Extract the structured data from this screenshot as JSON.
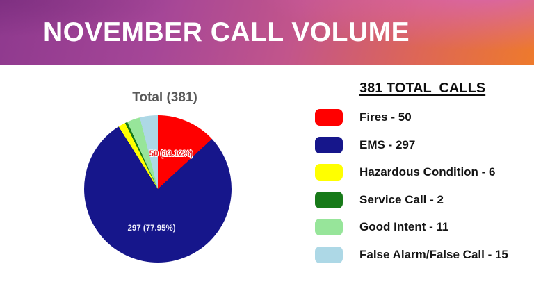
{
  "header": {
    "title": "NOVEMBER CALL VOLUME"
  },
  "chart_data": {
    "type": "pie",
    "title": "Total (381)",
    "total": 381,
    "start_angle_deg": 0,
    "direction": "clockwise",
    "legend_position": "right",
    "slices": [
      {
        "label": "Fires",
        "value": 50,
        "color": "#ff0000",
        "display_label": "50 (13.12%)"
      },
      {
        "label": "EMS",
        "value": 297,
        "color": "#16168b",
        "display_label": "297 (77.95%)"
      },
      {
        "label": "Hazardous Condition",
        "value": 6,
        "color": "#ffff00"
      },
      {
        "label": "Service Call",
        "value": 2,
        "color": "#177a19"
      },
      {
        "label": "Good Intent",
        "value": 11,
        "color": "#97e59a"
      },
      {
        "label": "False Alarm/False Call",
        "value": 15,
        "color": "#add8e6"
      }
    ],
    "callouts": [
      {
        "text": "50 (13.12%)",
        "color": "#e82828"
      },
      {
        "text": "297 (77.95%)",
        "color": "#eeeefc"
      }
    ]
  },
  "legend": {
    "heading": "381 TOTAL  CALLS",
    "items": [
      {
        "label": "Fires - 50",
        "color": "#ff0000"
      },
      {
        "label": "EMS - 297",
        "color": "#16168b"
      },
      {
        "label": "Hazardous Condition - 6",
        "color": "#ffff00"
      },
      {
        "label": "Service Call - 2",
        "color": "#177a19"
      },
      {
        "label": "Good Intent - 11",
        "color": "#97e59a"
      },
      {
        "label": "False Alarm/False Call - 15",
        "color": "#add8e6"
      }
    ]
  },
  "colors": {
    "banner_gradient_start": "#8e398e",
    "banner_gradient_mid": "#c2558b",
    "banner_gradient_end": "#ee7a2c",
    "chart_title_text": "#595959",
    "legend_text": "#141414"
  }
}
